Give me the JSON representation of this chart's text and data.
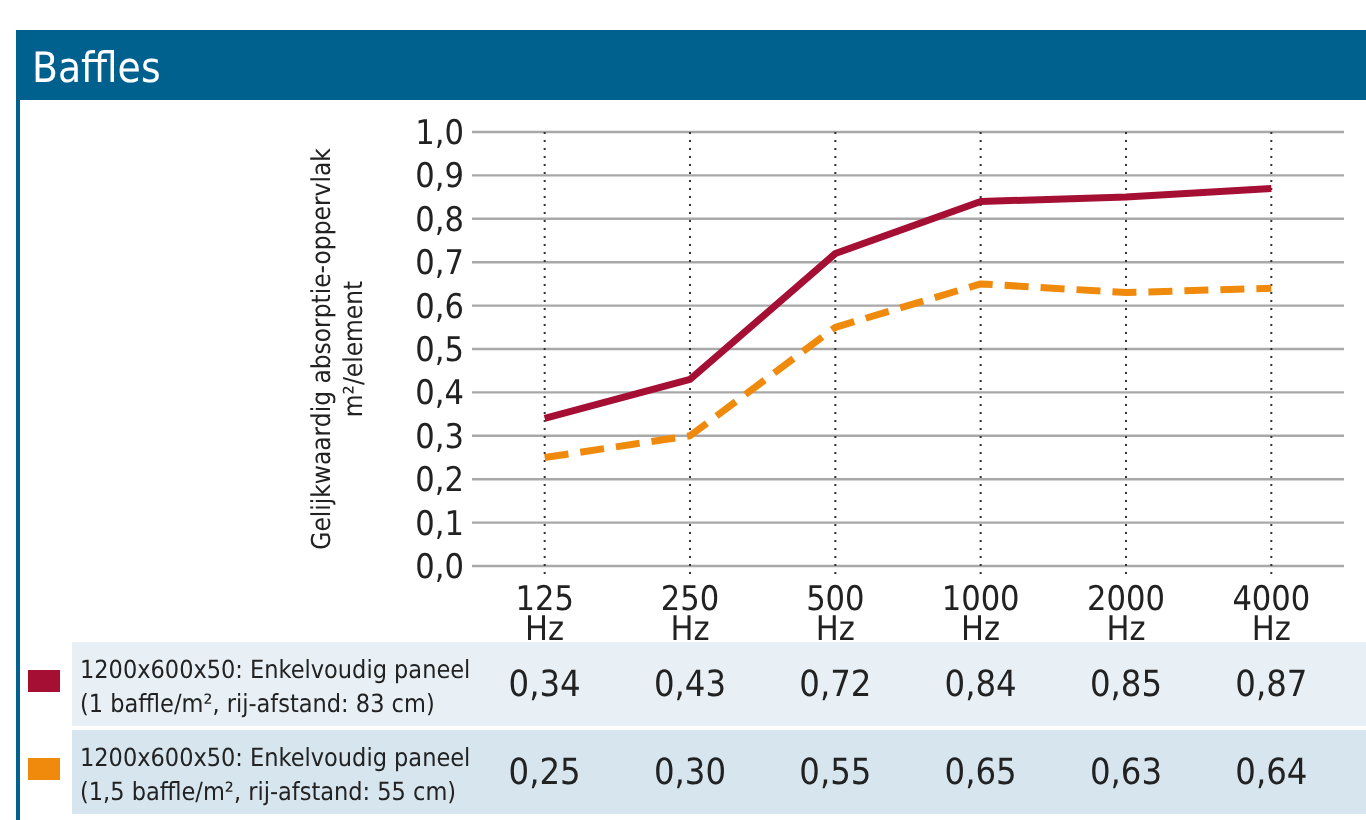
{
  "chart_data": {
    "type": "line",
    "title": "Baffles",
    "ylabel": "Gelijkwaardig absorptie-oppervlak m²/element",
    "categories": [
      "125 Hz",
      "250 Hz",
      "500 Hz",
      "1000 Hz",
      "2000 Hz",
      "4000 Hz"
    ],
    "ylim": [
      0,
      1
    ],
    "yticks": [
      {
        "value": 0,
        "label": "0,0"
      },
      {
        "value": 0.1,
        "label": "0,1"
      },
      {
        "value": 0.2,
        "label": "0,2"
      },
      {
        "value": 0.3,
        "label": "0,3"
      },
      {
        "value": 0.4,
        "label": "0,4"
      },
      {
        "value": 0.5,
        "label": "0,5"
      },
      {
        "value": 0.6,
        "label": "0,6"
      },
      {
        "value": 0.7,
        "label": "0,7"
      },
      {
        "value": 0.8,
        "label": "0,8"
      },
      {
        "value": 0.9,
        "label": "0,9"
      },
      {
        "value": 1,
        "label": "1,0"
      }
    ],
    "grid": true,
    "legend": "bottom",
    "marker": "none",
    "series": [
      {
        "name": "1200x600x50: Enkelvoudig paneel (1 baffle/m², rij-afstand: 83 cm)",
        "color": "#a50f34",
        "line_style": "solid",
        "values": [
          0.34,
          0.43,
          0.72,
          0.84,
          0.85,
          0.87
        ],
        "value_labels": [
          "0,34",
          "0,43",
          "0,72",
          "0,84",
          "0,85",
          "0,87"
        ]
      },
      {
        "name": "1200x600x50: Enkelvoudig paneel (1,5 baffle/m², rij-afstand: 55 cm)",
        "color": "#ef8a0c",
        "line_style": "dashed",
        "values": [
          0.25,
          0.3,
          0.55,
          0.65,
          0.63,
          0.64
        ],
        "value_labels": [
          "0,25",
          "0,30",
          "0,55",
          "0,65",
          "0,63",
          "0,64"
        ]
      }
    ]
  }
}
